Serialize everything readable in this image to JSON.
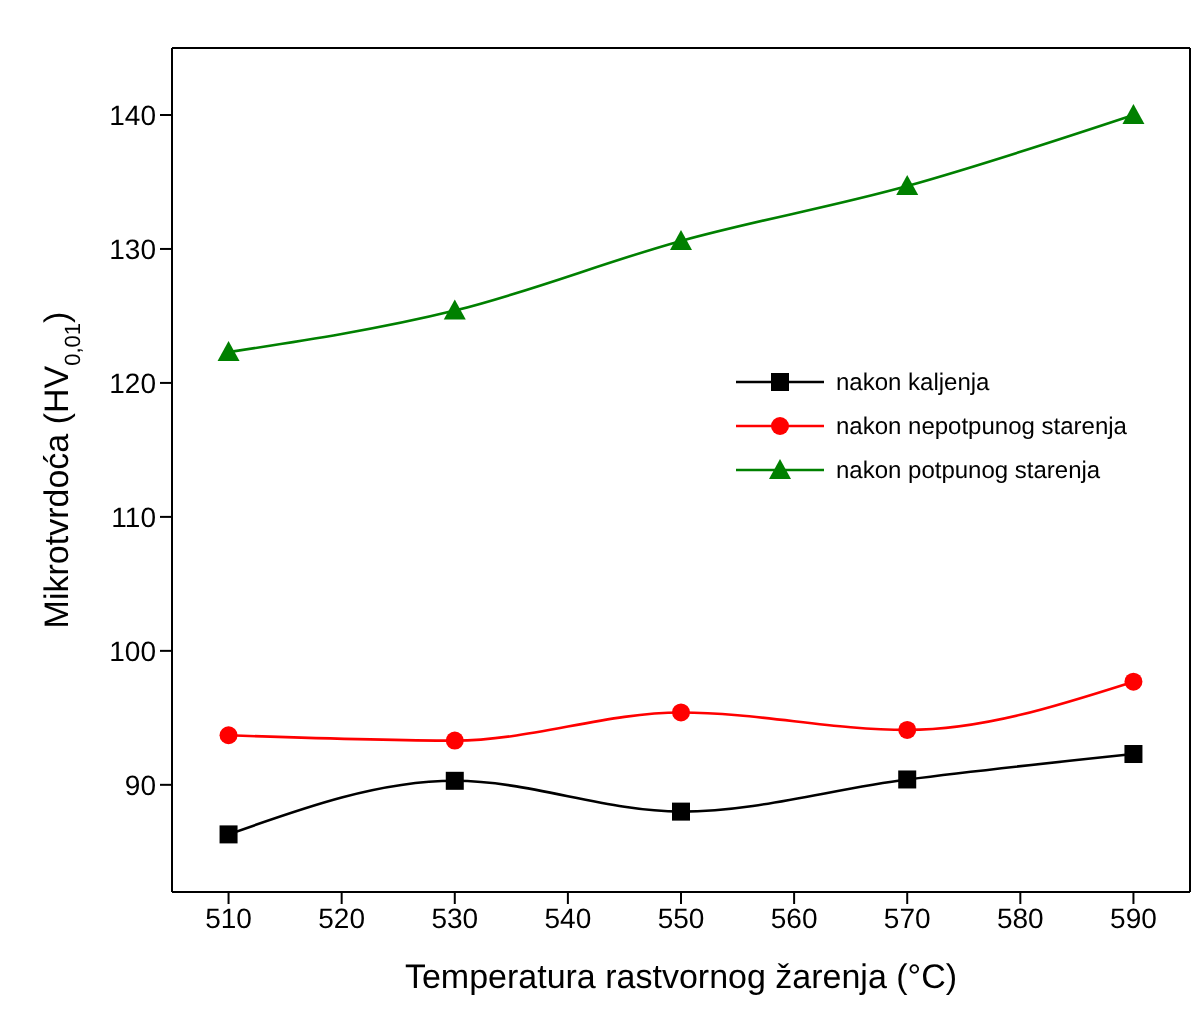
{
  "chart_data": {
    "type": "line",
    "xlabel": "Temperatura rastvornog žarenja (°C)",
    "ylabel": "Mikrotvrdoća (HV$_{0,01}$)",
    "x": [
      510,
      530,
      550,
      570,
      590
    ],
    "xlim": [
      505,
      595
    ],
    "xticks": [
      510,
      520,
      530,
      540,
      550,
      560,
      570,
      580,
      590
    ],
    "ylim": [
      82,
      145
    ],
    "yticks": [
      90,
      100,
      110,
      120,
      130,
      140
    ],
    "legend": "right",
    "grid": false,
    "series": [
      {
        "name": "nakon kaljenja",
        "color": "#000000",
        "marker": "square",
        "values": [
          86.3,
          90.3,
          88.0,
          90.4,
          92.3
        ]
      },
      {
        "name": "nakon nepotpunog starenja",
        "color": "#ff0000",
        "marker": "circle",
        "values": [
          93.7,
          93.3,
          95.4,
          94.1,
          97.7
        ]
      },
      {
        "name": "nakon potpunog starenja",
        "color": "#008000",
        "marker": "triangle",
        "values": [
          122.3,
          125.4,
          130.6,
          134.7,
          140.0
        ]
      }
    ]
  }
}
